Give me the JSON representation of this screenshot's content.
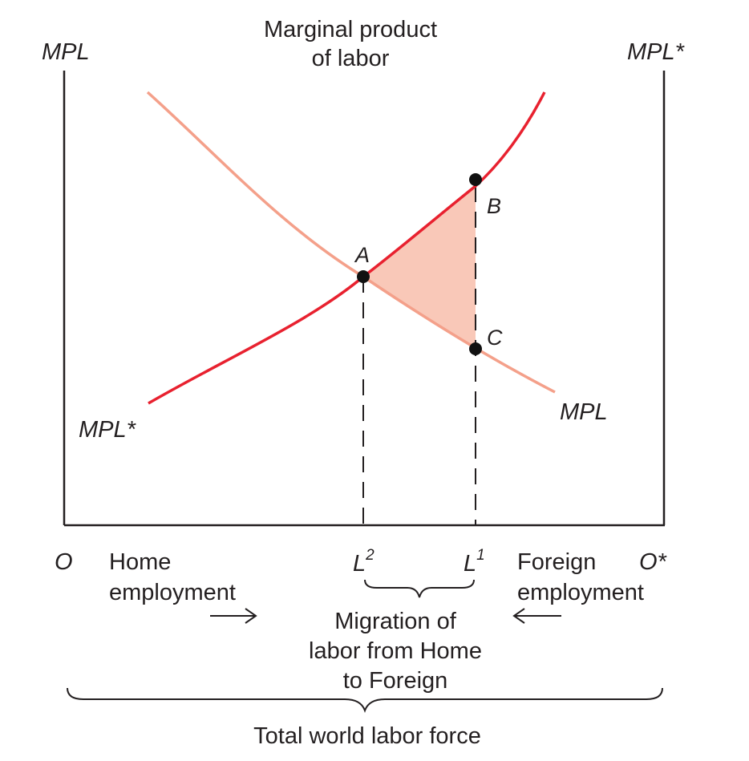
{
  "title": {
    "line1": "Marginal product",
    "line2": "of labor"
  },
  "axes": {
    "left_axis_label": "MPL",
    "right_axis_label": "MPL*",
    "origin_home": "O",
    "origin_foreign": "O*"
  },
  "curves": {
    "home_curve_label": "MPL",
    "foreign_curve_label": "MPL*",
    "home_curve_color": "#f4a08a",
    "foreign_curve_color": "#e8212f",
    "shaded_area_color": "#f9c8b8"
  },
  "points": {
    "a": "A",
    "b": "B",
    "c": "C"
  },
  "labor_marks": {
    "l2_base": "L",
    "l2_sup": "2",
    "l1_base": "L",
    "l1_sup": "1"
  },
  "home_employment": {
    "line1": "Home",
    "line2": "employment",
    "arrow": "→"
  },
  "foreign_employment": {
    "line1": "Foreign",
    "line2": "employment",
    "arrow": "←"
  },
  "migration": {
    "line1": "Migration of",
    "line2": "labor from Home",
    "line3": "to Foreign"
  },
  "total_label": "Total world labor force"
}
